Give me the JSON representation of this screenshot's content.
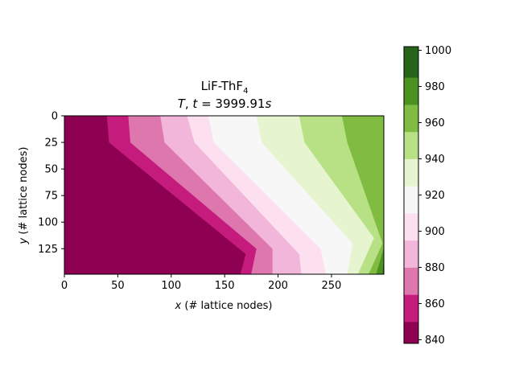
{
  "chart_data": {
    "type": "heatmap",
    "title_line1": "LiF-ThF",
    "title_line1_sub": "4",
    "title_line2_var": "T",
    "title_line2_mid": ", ",
    "title_line2_t": "t",
    "title_line2_rest": " = 3999.91",
    "title_line2_unit": "s",
    "xlabel_var": "x",
    "xlabel_rest": " (# lattice nodes)",
    "ylabel_var": "y",
    "ylabel_rest": " (# lattice nodes)",
    "xlim": [
      0,
      299
    ],
    "ylim": [
      149,
      0
    ],
    "x_ticks": [
      0,
      50,
      100,
      150,
      200,
      250
    ],
    "y_ticks": [
      0,
      25,
      50,
      75,
      100,
      125
    ],
    "colorbar_ticks": [
      840,
      860,
      880,
      900,
      920,
      940,
      960,
      980,
      1000
    ],
    "color_levels": [
      838,
      850,
      865,
      880,
      895,
      910,
      925,
      940,
      955,
      970,
      985,
      1002
    ],
    "level_colors": [
      "#8e0152",
      "#c51b7d",
      "#de77ae",
      "#f1b6da",
      "#fde0ef",
      "#f7f7f7",
      "#e6f5d0",
      "#b8e186",
      "#7fbc41",
      "#4d9221",
      "#276419"
    ],
    "band_boundaries": [
      [
        [
          40,
          0
        ],
        [
          42,
          25
        ],
        [
          170,
          130
        ],
        [
          165,
          149
        ]
      ],
      [
        [
          60,
          0
        ],
        [
          62,
          25
        ],
        [
          180,
          125
        ],
        [
          175,
          149
        ]
      ],
      [
        [
          90,
          0
        ],
        [
          94,
          25
        ],
        [
          195,
          125
        ],
        [
          195,
          149
        ]
      ],
      [
        [
          115,
          0
        ],
        [
          122,
          25
        ],
        [
          220,
          130
        ],
        [
          222,
          149
        ]
      ],
      [
        [
          135,
          0
        ],
        [
          140,
          25
        ],
        [
          240,
          125
        ],
        [
          245,
          149
        ]
      ],
      [
        [
          180,
          0
        ],
        [
          185,
          25
        ],
        [
          270,
          120
        ],
        [
          265,
          149
        ]
      ],
      [
        [
          220,
          0
        ],
        [
          225,
          25
        ],
        [
          290,
          115
        ],
        [
          275,
          149
        ]
      ],
      [
        [
          260,
          0
        ],
        [
          265,
          25
        ],
        [
          298,
          120
        ],
        [
          285,
          149
        ]
      ],
      [
        [
          299,
          0
        ],
        [
          299,
          25
        ],
        [
          299,
          125
        ],
        [
          292,
          149
        ]
      ],
      [
        [
          300,
          0
        ],
        [
          300,
          25
        ],
        [
          300,
          125
        ],
        [
          298,
          149
        ]
      ]
    ]
  }
}
